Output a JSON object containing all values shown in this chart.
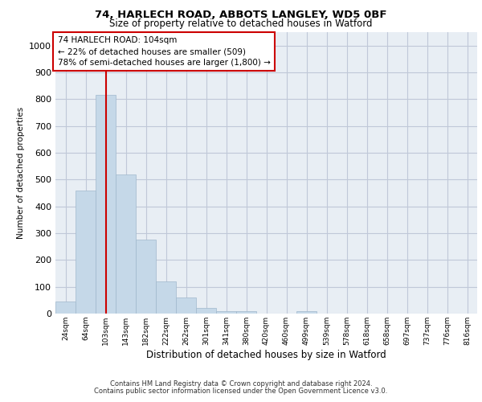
{
  "title_line1": "74, HARLECH ROAD, ABBOTS LANGLEY, WD5 0BF",
  "title_line2": "Size of property relative to detached houses in Watford",
  "xlabel": "Distribution of detached houses by size in Watford",
  "ylabel": "Number of detached properties",
  "categories": [
    "24sqm",
    "64sqm",
    "103sqm",
    "143sqm",
    "182sqm",
    "222sqm",
    "262sqm",
    "301sqm",
    "341sqm",
    "380sqm",
    "420sqm",
    "460sqm",
    "499sqm",
    "539sqm",
    "578sqm",
    "618sqm",
    "658sqm",
    "697sqm",
    "737sqm",
    "776sqm",
    "816sqm"
  ],
  "values": [
    45,
    460,
    815,
    520,
    275,
    120,
    60,
    20,
    8,
    10,
    0,
    0,
    8,
    0,
    0,
    0,
    0,
    0,
    0,
    0,
    0
  ],
  "bar_color": "#c5d8e8",
  "bar_edge_color": "#a0b8cc",
  "grid_color": "#c0c8d8",
  "background_color": "#e8eef4",
  "vline_x": 2,
  "vline_color": "#cc0000",
  "annotation_text": "74 HARLECH ROAD: 104sqm\n← 22% of detached houses are smaller (509)\n78% of semi-detached houses are larger (1,800) →",
  "annotation_box_color": "#cc0000",
  "ylim": [
    0,
    1050
  ],
  "yticks": [
    0,
    100,
    200,
    300,
    400,
    500,
    600,
    700,
    800,
    900,
    1000
  ],
  "footer_line1": "Contains HM Land Registry data © Crown copyright and database right 2024.",
  "footer_line2": "Contains public sector information licensed under the Open Government Licence v3.0."
}
